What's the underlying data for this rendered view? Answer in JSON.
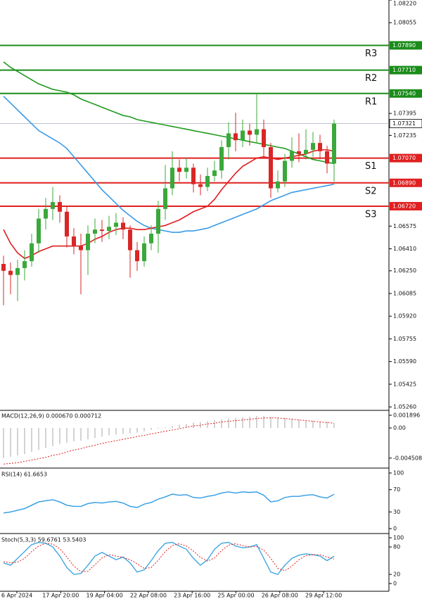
{
  "chart_data": {
    "type": "candlestick",
    "xlabels": [
      "6 Apr 2024",
      "17 Apr 20:00",
      "19 Apr 04:00",
      "22 Apr 08:00",
      "23 Apr 16:00",
      "25 Apr 00:00",
      "26 Apr 08:00",
      "29 Apr 12:00"
    ],
    "price": {
      "ylim": [
        1.0524,
        1.0822
      ],
      "yticks": [
        {
          "value": 1.0822,
          "label": "1.08220"
        },
        1.08055,
        1.07395,
        1.07235,
        1.06575,
        {
          "value": 1.0641,
          "label": "1.06410"
        },
        {
          "value": 1.0625,
          "label": "1.06250"
        },
        1.06085,
        {
          "value": 1.0592,
          "label": "1.05920"
        },
        1.05755,
        {
          "value": 1.0559,
          "label": "1.05590"
        },
        1.05425,
        {
          "value": 1.0526,
          "label": "1.05260"
        }
      ],
      "up_color": "#3aa83a",
      "down_color": "#d92626",
      "ohlc": [
        [
          1.063,
          1.0636,
          1.06,
          1.0625
        ],
        [
          1.0625,
          1.0631,
          1.0608,
          1.0622
        ],
        [
          1.0622,
          1.0633,
          1.0603,
          1.0627
        ],
        [
          1.0627,
          1.064,
          1.0618,
          1.0632
        ],
        [
          1.0632,
          1.0652,
          1.0628,
          1.0645
        ],
        [
          1.0645,
          1.067,
          1.0638,
          1.0663
        ],
        [
          1.0663,
          1.0678,
          1.0655,
          1.067
        ],
        [
          1.067,
          1.0686,
          1.0662,
          1.0675
        ],
        [
          1.0675,
          1.068,
          1.066,
          1.0668
        ],
        [
          1.0668,
          1.0672,
          1.0642,
          1.065
        ],
        [
          1.065,
          1.0656,
          1.0637,
          1.0643
        ],
        [
          1.0643,
          1.0652,
          1.0608,
          1.064
        ],
        [
          1.064,
          1.0658,
          1.0622,
          1.0652
        ],
        [
          1.0652,
          1.0663,
          1.0645,
          1.0655
        ],
        [
          1.0655,
          1.0662,
          1.0646,
          1.0654
        ],
        [
          1.0654,
          1.0665,
          1.0648,
          1.0657
        ],
        [
          1.0657,
          1.0667,
          1.0651,
          1.066
        ],
        [
          1.066,
          1.0664,
          1.0648,
          1.0655
        ],
        [
          1.0655,
          1.0658,
          1.062,
          1.064
        ],
        [
          1.064,
          1.0646,
          1.0625,
          1.0632
        ],
        [
          1.0632,
          1.065,
          1.0628,
          1.0645
        ],
        [
          1.0645,
          1.0658,
          1.064,
          1.0652
        ],
        [
          1.0652,
          1.0676,
          1.0638,
          1.067
        ],
        [
          1.067,
          1.0702,
          1.0662,
          1.0685
        ],
        [
          1.0685,
          1.0712,
          1.068,
          1.07
        ],
        [
          1.07,
          1.0706,
          1.069,
          1.0697
        ],
        [
          1.0697,
          1.0707,
          1.0692,
          1.07
        ],
        [
          1.07,
          1.0703,
          1.0682,
          1.0688
        ],
        [
          1.0688,
          1.0695,
          1.068,
          1.0686
        ],
        [
          1.0686,
          1.07,
          1.0683,
          1.0694
        ],
        [
          1.0694,
          1.0705,
          1.069,
          1.0698
        ],
        [
          1.0698,
          1.072,
          1.0692,
          1.0715
        ],
        [
          1.0715,
          1.0733,
          1.0706,
          1.0725
        ],
        [
          1.0725,
          1.074,
          1.0712,
          1.072
        ],
        [
          1.072,
          1.0735,
          1.0715,
          1.0727
        ],
        [
          1.0727,
          1.0732,
          1.0716,
          1.0724
        ],
        [
          1.0724,
          1.0754,
          1.0718,
          1.0728
        ],
        [
          1.0728,
          1.0735,
          1.0708,
          1.0715
        ],
        [
          1.0715,
          1.0718,
          1.0678,
          1.0685
        ],
        [
          1.0685,
          1.0698,
          1.0682,
          1.069
        ],
        [
          1.069,
          1.071,
          1.0686,
          1.0705
        ],
        [
          1.0705,
          1.0722,
          1.07,
          1.0712
        ],
        [
          1.0712,
          1.0725,
          1.0704,
          1.071
        ],
        [
          1.071,
          1.0728,
          1.0706,
          1.0713
        ],
        [
          1.0713,
          1.0726,
          1.0708,
          1.0718
        ],
        [
          1.0718,
          1.0724,
          1.0706,
          1.0712
        ],
        [
          1.0712,
          1.0716,
          1.0696,
          1.0703
        ],
        [
          1.0703,
          1.0735,
          1.069,
          1.07321
        ]
      ],
      "lines": [
        {
          "color": "#1f9a1f",
          "values": [
            1.0777,
            1.0773,
            1.077,
            1.0767,
            1.0764,
            1.0761,
            1.0759,
            1.0757,
            1.0756,
            1.0755,
            1.0753,
            1.075,
            1.0748,
            1.0746,
            1.0744,
            1.0742,
            1.074,
            1.0738,
            1.0737,
            1.0735,
            1.0734,
            1.0733,
            1.0732,
            1.0731,
            1.073,
            1.0729,
            1.0728,
            1.0727,
            1.0726,
            1.0725,
            1.0724,
            1.0723,
            1.0722,
            1.0721,
            1.072,
            1.0719,
            1.0718,
            1.0717,
            1.0716,
            1.0715,
            1.0714,
            1.0712,
            1.071,
            1.0708,
            1.0706,
            1.0705,
            1.0704,
            1.0703
          ]
        },
        {
          "color": "#3a9be8",
          "values": [
            1.0752,
            1.0747,
            1.0742,
            1.0737,
            1.0732,
            1.0727,
            1.0724,
            1.0721,
            1.0718,
            1.0714,
            1.0708,
            1.0702,
            1.0696,
            1.069,
            1.0684,
            1.0679,
            1.0674,
            1.0669,
            1.0665,
            1.0661,
            1.0658,
            1.0656,
            1.0655,
            1.0654,
            1.0653,
            1.0653,
            1.0654,
            1.0654,
            1.0655,
            1.0656,
            1.0658,
            1.066,
            1.0662,
            1.0664,
            1.0666,
            1.0668,
            1.067,
            1.0673,
            1.0676,
            1.0678,
            1.068,
            1.0682,
            1.0683,
            1.0684,
            1.0685,
            1.0686,
            1.0687,
            1.0688
          ]
        },
        {
          "color": "#e01e1e",
          "values": [
            1.0655,
            1.0645,
            1.0638,
            1.0634,
            1.0636,
            1.0639,
            1.0641,
            1.0643,
            1.0643,
            1.0643,
            1.0643,
            1.0643,
            1.0645,
            1.0648,
            1.065,
            1.0653,
            1.0655,
            1.0656,
            1.0656,
            1.0655,
            1.0655,
            1.0656,
            1.0657,
            1.0658,
            1.066,
            1.0662,
            1.0665,
            1.0668,
            1.067,
            1.0672,
            1.0677,
            1.0684,
            1.069,
            1.0696,
            1.0701,
            1.0704,
            1.0707,
            1.0708,
            1.0707,
            1.0706,
            1.0707,
            1.0708,
            1.0709,
            1.071,
            1.0712,
            1.0713,
            1.0713,
            1.0712
          ]
        }
      ],
      "levels": [
        {
          "label": "R3",
          "value": 1.0789,
          "value_label": "1.07890",
          "color": "#1a8c1a"
        },
        {
          "label": "R2",
          "value": 1.0771,
          "value_label": "1.07710",
          "color": "#1a8c1a"
        },
        {
          "label": "R1",
          "value": 1.0754,
          "value_label": "1.07540",
          "color": "#1a8c1a"
        },
        {
          "label": "S1",
          "value": 1.0707,
          "value_label": "1.07070",
          "color": "#e02020"
        },
        {
          "label": "S2",
          "value": 1.0689,
          "value_label": "1.06890",
          "color": "#e02020"
        },
        {
          "label": "S3",
          "value": 1.0672,
          "value_label": "1.06720",
          "color": "#e02020"
        }
      ],
      "current": 1.07321
    },
    "macd": {
      "label": "MACD(12,26,9) 0.000670 0.000712",
      "ylim": [
        -0.005793,
        0.002423
      ],
      "yticks": [
        0.001896,
        {
          "value": 0,
          "label": "0.00"
        },
        -0.004508
      ],
      "hist_color": "#c4c4c4",
      "signal_color": "#e02020",
      "hist": [
        -0.0045,
        -0.0043,
        -0.0041,
        -0.0039,
        -0.0036,
        -0.0033,
        -0.003,
        -0.0027,
        -0.0024,
        -0.0022,
        -0.002,
        -0.0019,
        -0.0017,
        -0.0015,
        -0.0013,
        -0.0011,
        -0.001,
        -0.0009,
        -0.0008,
        -0.0007,
        -0.0005,
        -0.0003,
        -0.0001,
        0.0001,
        0.0003,
        0.0005,
        0.0006,
        0.0008,
        0.0009,
        0.001,
        0.0012,
        0.0013,
        0.0014,
        0.0015,
        0.0016,
        0.0017,
        0.0018,
        0.0018,
        0.0017,
        0.0016,
        0.0015,
        0.0014,
        0.0013,
        0.0012,
        0.0011,
        0.001,
        0.00095,
        0.00067
      ],
      "signal": [
        -0.0054,
        -0.0053,
        -0.0052,
        -0.005,
        -0.0048,
        -0.0046,
        -0.0044,
        -0.0041,
        -0.0039,
        -0.0036,
        -0.0033,
        -0.0031,
        -0.0028,
        -0.0026,
        -0.0023,
        -0.0021,
        -0.0019,
        -0.0017,
        -0.0015,
        -0.0013,
        -0.0011,
        -0.0009,
        -0.0007,
        -0.0005,
        -0.0003,
        -0.0001,
        0.0001,
        0.0003,
        0.0004,
        0.0006,
        0.0007,
        0.0009,
        0.001,
        0.0011,
        0.0012,
        0.0013,
        0.0014,
        0.0015,
        0.0015,
        0.0015,
        0.0014,
        0.0013,
        0.0012,
        0.0011,
        0.001,
        0.0009,
        0.0008,
        0.000712
      ]
    },
    "rsi": {
      "label": "RSI(14) 61.6653",
      "ylim": [
        -7.6,
        106.3
      ],
      "yticks": [
        100,
        70,
        30,
        0
      ],
      "color": "#2e9be6",
      "values": [
        28,
        30,
        33,
        36,
        42,
        48,
        50,
        52,
        48,
        42,
        40,
        40,
        45,
        47,
        46,
        48,
        49,
        46,
        40,
        38,
        44,
        47,
        53,
        57,
        62,
        60,
        61,
        56,
        55,
        58,
        60,
        64,
        66,
        64,
        66,
        65,
        66,
        60,
        48,
        50,
        56,
        58,
        58,
        60,
        61,
        57,
        55,
        61.6653
      ]
    },
    "stoch": {
      "label": "Stoch(5,3,3) 59.6761 53.5403",
      "ylim": [
        -16.9,
        106.2
      ],
      "yticks": [
        100,
        80,
        20,
        0
      ],
      "main_color": "#41a8e0",
      "signal_color": "#e02020",
      "main": [
        45,
        40,
        55,
        70,
        85,
        90,
        88,
        80,
        60,
        35,
        20,
        22,
        40,
        60,
        68,
        60,
        52,
        58,
        45,
        25,
        30,
        50,
        72,
        88,
        90,
        82,
        75,
        55,
        40,
        52,
        75,
        88,
        90,
        82,
        78,
        80,
        85,
        55,
        25,
        20,
        40,
        55,
        62,
        65,
        63,
        60,
        50,
        59.6761
      ],
      "signal": [
        48,
        45,
        47,
        55,
        70,
        82,
        88,
        86,
        76,
        58,
        38,
        26,
        27,
        41,
        56,
        63,
        60,
        57,
        52,
        43,
        33,
        35,
        51,
        70,
        83,
        87,
        82,
        71,
        57,
        49,
        56,
        72,
        84,
        87,
        83,
        80,
        81,
        73,
        55,
        33,
        28,
        38,
        52,
        61,
        63,
        63,
        58,
        53.5403
      ]
    }
  }
}
